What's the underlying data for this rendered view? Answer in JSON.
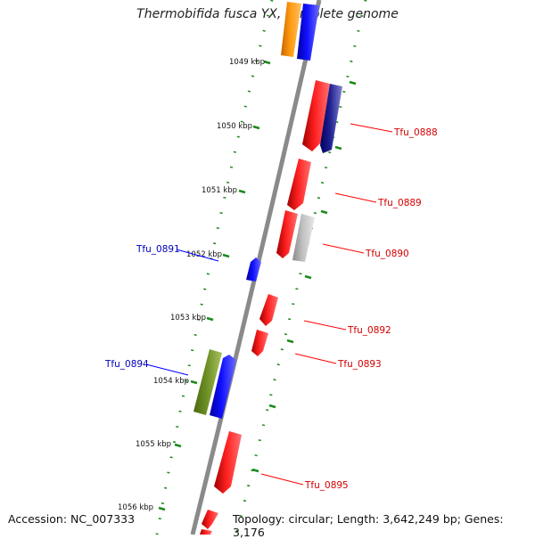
{
  "title": "Thermobifida fusca YX, complete genome",
  "footer": {
    "accession": "Accession: NC_007333",
    "summary": "Topology: circular; Length: 3,642,249 bp; Genes: 3,176"
  },
  "colors": {
    "backbone": "#888888",
    "ticks": "#1a8a1a",
    "forward_label": "#d40000",
    "reverse_label": "#0000bb",
    "red": "#ff0000",
    "blue": "#0000ff",
    "orange": "#ff8c00",
    "green": "#6b8e23",
    "gray": "#b4b4b4",
    "navy": "#1a1a80"
  },
  "kbp_labels": [
    "1049 kbp",
    "1050 kbp",
    "1051 kbp",
    "1052 kbp",
    "1053 kbp",
    "1054 kbp",
    "1055 kbp",
    "1056 kbp"
  ],
  "genes_forward": [
    {
      "label": "Tfu_0888"
    },
    {
      "label": "Tfu_0889"
    },
    {
      "label": "Tfu_0890"
    },
    {
      "label": "Tfu_0892"
    },
    {
      "label": "Tfu_0893"
    },
    {
      "label": "Tfu_0895"
    }
  ],
  "genes_reverse": [
    {
      "label": "Tfu_0891"
    },
    {
      "label": "Tfu_0894"
    }
  ]
}
